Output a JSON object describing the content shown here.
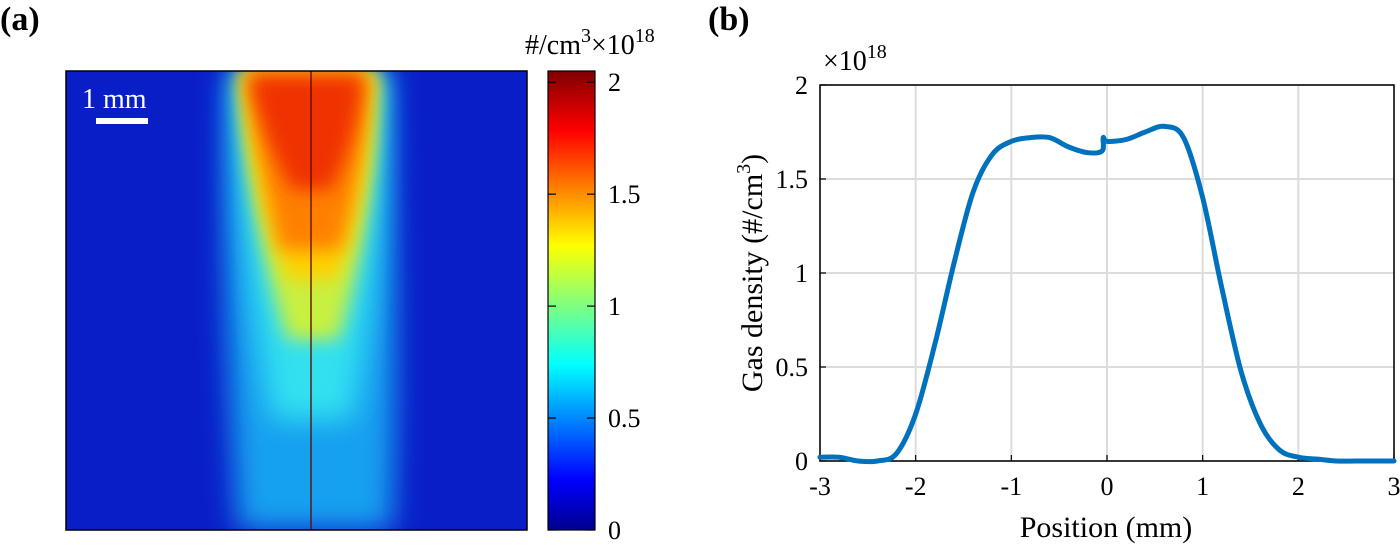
{
  "panel_a": {
    "label": "(a)",
    "scale_bar_label": "1 mm",
    "colorbar": {
      "unit": "#/cm",
      "unit_exp": "3",
      "multiplier": "×10",
      "multiplier_exp": "18",
      "ticks": [
        "0",
        "0.5",
        "1",
        "1.5",
        "2"
      ],
      "range": [
        0,
        2.05
      ],
      "colormap": "jet"
    }
  },
  "panel_b": {
    "label": "(b)",
    "multiplier": "×10",
    "multiplier_exp": "18",
    "ylabel_main": "Gas density (#/cm",
    "ylabel_exp": "3",
    "ylabel_end": ")",
    "xlabel": "Position (mm)"
  },
  "chart_data": [
    {
      "type": "heatmap",
      "title": "",
      "colorbar_label": "#/cm3 ×10^18",
      "value_range": [
        0,
        2.05
      ],
      "description_values": {
        "peak_region": "top center, values ~1.7-2.0",
        "background": "~0.0-0.1"
      }
    },
    {
      "type": "line",
      "xlabel": "Position (mm)",
      "ylabel": "Gas density (#/cm3)",
      "multiplier": "×10^18",
      "xlim": [
        -3,
        3
      ],
      "ylim": [
        0,
        2
      ],
      "xticks": [
        "-3",
        "-2",
        "-1",
        "0",
        "1",
        "2",
        "3"
      ],
      "yticks": [
        "0",
        "0.5",
        "1",
        "1.5",
        "2"
      ],
      "grid": true,
      "color": "#0072BD",
      "series": [
        {
          "x": [
            -3.0,
            -2.8,
            -2.6,
            -2.4,
            -2.2,
            -2.0,
            -1.8,
            -1.6,
            -1.4,
            -1.2,
            -1.0,
            -0.8,
            -0.6,
            -0.4,
            -0.2,
            -0.05,
            -0.04,
            0.0,
            0.2,
            0.4,
            0.6,
            0.8,
            1.0,
            1.2,
            1.4,
            1.6,
            1.8,
            2.0,
            2.2,
            2.4,
            2.6,
            2.8,
            3.0
          ],
          "values": [
            0.02,
            0.02,
            0.0,
            0.0,
            0.04,
            0.25,
            0.62,
            1.05,
            1.43,
            1.63,
            1.7,
            1.72,
            1.72,
            1.67,
            1.64,
            1.65,
            1.72,
            1.7,
            1.71,
            1.75,
            1.78,
            1.72,
            1.4,
            0.92,
            0.48,
            0.2,
            0.06,
            0.02,
            0.01,
            0.0,
            0.0,
            0.0,
            0.0
          ]
        }
      ]
    }
  ]
}
